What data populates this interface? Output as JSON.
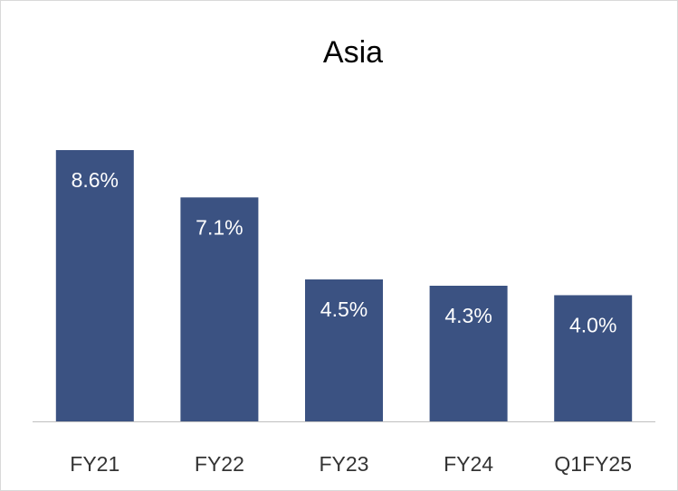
{
  "chart_data": {
    "type": "bar",
    "title": "Asia",
    "categories": [
      "FY21",
      "FY22",
      "FY23",
      "FY24",
      "Q1FY25"
    ],
    "values": [
      8.6,
      7.1,
      4.5,
      4.3,
      4.0
    ],
    "value_labels": [
      "8.6%",
      "7.1%",
      "4.5%",
      "4.3%",
      "4.0%"
    ],
    "color": "#3b5282"
  }
}
